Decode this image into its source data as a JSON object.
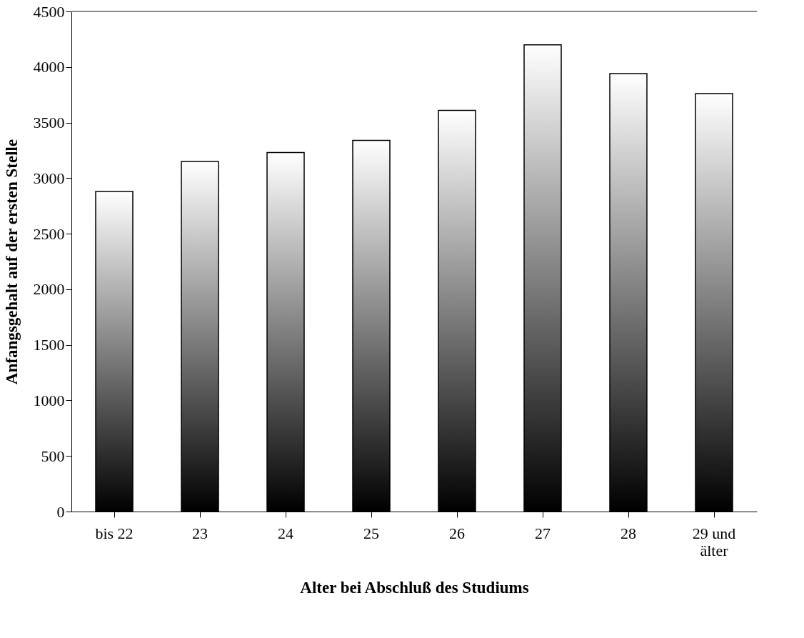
{
  "chart_data": {
    "type": "bar",
    "xlabel": "Alter bei Abschluß des Studiums",
    "ylabel": "Anfangsgehalt auf der ersten Stelle",
    "categories": [
      "bis 22",
      "23",
      "24",
      "25",
      "26",
      "27",
      "28",
      "29 und älter"
    ],
    "values": [
      2880,
      3150,
      3230,
      3340,
      3610,
      4200,
      3940,
      3760
    ],
    "color": "#000000",
    "ylim": [
      0,
      4500
    ],
    "yticks": [
      0,
      500,
      1000,
      1500,
      2000,
      2500,
      3000,
      3500,
      4000,
      4500
    ],
    "grid": false
  }
}
